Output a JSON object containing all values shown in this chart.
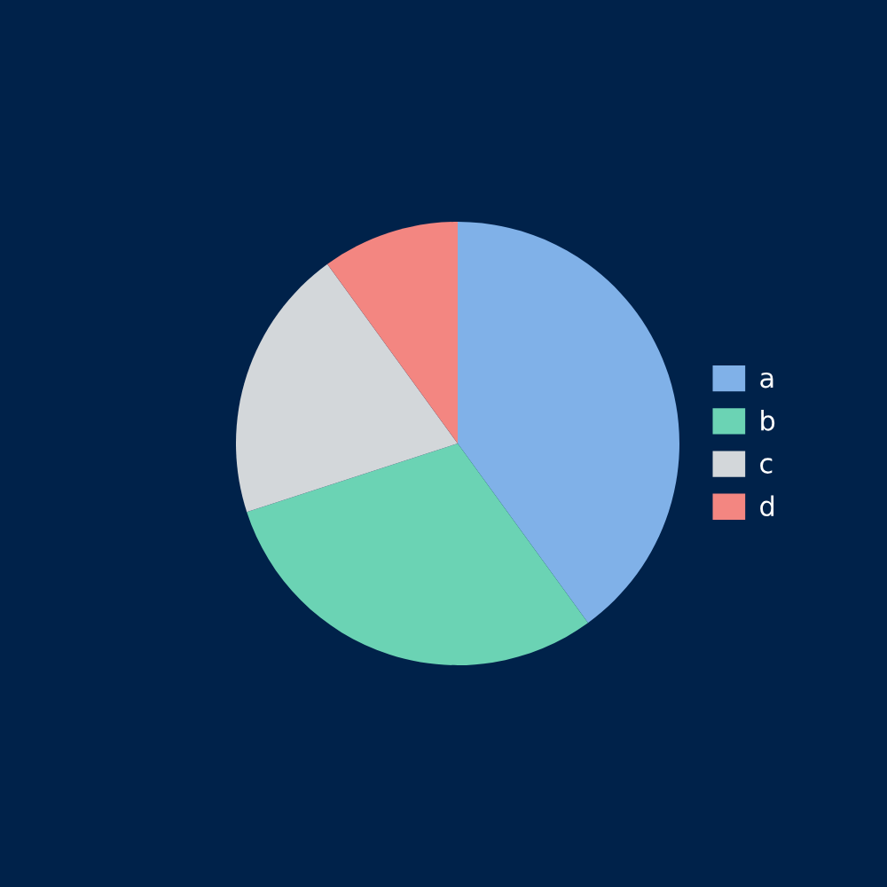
{
  "chart_data": {
    "type": "pie",
    "categories": [
      "a",
      "b",
      "c",
      "d"
    ],
    "values": [
      40,
      30,
      20,
      10
    ],
    "colors": [
      "#80b1e8",
      "#6bd3b4",
      "#d3d7da",
      "#f38681"
    ],
    "legend": "right"
  }
}
